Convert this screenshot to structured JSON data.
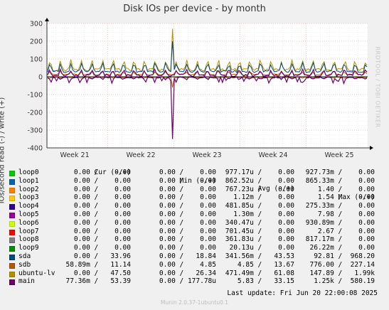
{
  "title": "Disk IOs per device - by month",
  "side_text": "RRDTOOL / TOBI OETIKER",
  "chart_data": {
    "type": "line",
    "ylabel": "IOs/second read (-) / write (+)",
    "ylim": [
      -400,
      300
    ],
    "yticks": [
      300,
      200,
      100,
      0,
      -100,
      -200,
      -300,
      -400
    ],
    "xticks": [
      "Week 21",
      "Week 22",
      "Week 23",
      "Week 24",
      "Week 25"
    ],
    "grid": true,
    "series": [
      {
        "name": "loop0",
        "color": "#00cc00",
        "cur": [
          "0.00",
          "0.00"
        ],
        "min": [
          "0.00",
          "0.00"
        ],
        "avg": [
          "977.17u",
          "0.00"
        ],
        "max": [
          "927.73m",
          "0.00"
        ]
      },
      {
        "name": "loop1",
        "color": "#0066b3",
        "cur": [
          "0.00",
          "0.00"
        ],
        "min": [
          "0.00",
          "0.00"
        ],
        "avg": [
          "862.52u",
          "0.00"
        ],
        "max": [
          "865.33m",
          "0.00"
        ]
      },
      {
        "name": "loop2",
        "color": "#ff8000",
        "cur": [
          "0.00",
          "0.00"
        ],
        "min": [
          "0.00",
          "0.00"
        ],
        "avg": [
          "767.23u",
          "0.00"
        ],
        "max": [
          "1.40",
          "0.00"
        ]
      },
      {
        "name": "loop3",
        "color": "#ffcc00",
        "cur": [
          "0.00",
          "0.00"
        ],
        "min": [
          "0.00",
          "0.00"
        ],
        "avg": [
          "1.12m",
          "0.00"
        ],
        "max": [
          "1.54",
          "0.00"
        ]
      },
      {
        "name": "loop4",
        "color": "#330099",
        "cur": [
          "0.00",
          "0.00"
        ],
        "min": [
          "0.00",
          "0.00"
        ],
        "avg": [
          "481.85u",
          "0.00"
        ],
        "max": [
          "275.33m",
          "0.00"
        ]
      },
      {
        "name": "loop5",
        "color": "#990099",
        "cur": [
          "0.00",
          "0.00"
        ],
        "min": [
          "0.00",
          "0.00"
        ],
        "avg": [
          "1.30m",
          "0.00"
        ],
        "max": [
          "7.98",
          "0.00"
        ]
      },
      {
        "name": "loop6",
        "color": "#ccff00",
        "cur": [
          "0.00",
          "0.00"
        ],
        "min": [
          "0.00",
          "0.00"
        ],
        "avg": [
          "340.47u",
          "0.00"
        ],
        "max": [
          "930.89m",
          "0.00"
        ]
      },
      {
        "name": "loop7",
        "color": "#ff0000",
        "cur": [
          "0.00",
          "0.00"
        ],
        "min": [
          "0.00",
          "0.00"
        ],
        "avg": [
          "701.45u",
          "0.00"
        ],
        "max": [
          "2.67",
          "0.00"
        ]
      },
      {
        "name": "loop8",
        "color": "#808080",
        "cur": [
          "0.00",
          "0.00"
        ],
        "min": [
          "0.00",
          "0.00"
        ],
        "avg": [
          "361.83u",
          "0.00"
        ],
        "max": [
          "817.17m",
          "0.00"
        ]
      },
      {
        "name": "loop9",
        "color": "#008f00",
        "cur": [
          "0.00",
          "0.00"
        ],
        "min": [
          "0.00",
          "0.00"
        ],
        "avg": [
          "20.13u",
          "0.00"
        ],
        "max": [
          "26.22m",
          "0.00"
        ]
      },
      {
        "name": "sda",
        "color": "#00487d",
        "cur": [
          "0.00",
          "33.96"
        ],
        "min": [
          "0.00",
          "18.84"
        ],
        "avg": [
          "341.56m",
          "43.53"
        ],
        "max": [
          "92.81",
          "968.20"
        ]
      },
      {
        "name": "sdb",
        "color": "#b35a00",
        "cur": [
          "58.89m",
          "11.14"
        ],
        "min": [
          "0.00",
          "4.85"
        ],
        "avg": [
          "4.85",
          "13.67"
        ],
        "max": [
          "776.00",
          "227.14"
        ]
      },
      {
        "name": "ubuntu-lv",
        "color": "#b38f00",
        "cur": [
          "0.00",
          "47.50"
        ],
        "min": [
          "0.00",
          "26.34"
        ],
        "avg": [
          "471.49m",
          "61.08"
        ],
        "max": [
          "147.89",
          "1.99k"
        ]
      },
      {
        "name": "main",
        "color": "#6b006b",
        "cur": [
          "77.36m",
          "53.39"
        ],
        "min": [
          "0.00",
          "177.78u"
        ],
        "avg": [
          "5.83",
          "33.15"
        ],
        "max": [
          "1.25k",
          "580.19"
        ]
      }
    ],
    "columns": [
      "Cur (-/+)",
      "Min (-/+)",
      "Avg (-/+)",
      "Max (-/+)"
    ],
    "spike_peak": 270,
    "spike_trough": -350
  },
  "footer": "Last update: Fri Jun 20 22:00:08 2025",
  "munin": "Munin 2.0.37-1ubuntu0.1"
}
